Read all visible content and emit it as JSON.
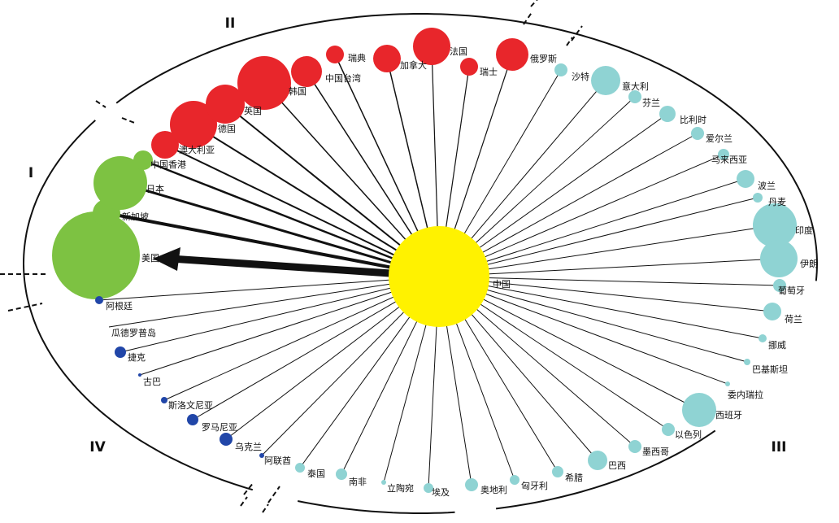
{
  "center": {
    "label": "中国"
  },
  "colors": {
    "center": "#FFF200",
    "I": "#7DC242",
    "II": "#E8262B",
    "III": "#8FD3D3",
    "IV": "#2146A8",
    "line": "#111111"
  },
  "quadrants": [
    {
      "id": "I",
      "label": "I"
    },
    {
      "id": "II",
      "label": "II"
    },
    {
      "id": "III",
      "label": "III"
    },
    {
      "id": "IV",
      "label": "IV"
    }
  ],
  "nodes": [
    {
      "label": "美国",
      "group": "I"
    },
    {
      "label": "新加坡",
      "group": "I"
    },
    {
      "label": "日本",
      "group": "I"
    },
    {
      "label": "中国香港",
      "group": "I"
    },
    {
      "label": "澳大利亚",
      "group": "II"
    },
    {
      "label": "德国",
      "group": "II"
    },
    {
      "label": "英国",
      "group": "II"
    },
    {
      "label": "韩国",
      "group": "II"
    },
    {
      "label": "中国台湾",
      "group": "II"
    },
    {
      "label": "瑞典",
      "group": "II"
    },
    {
      "label": "加拿大",
      "group": "II"
    },
    {
      "label": "法国",
      "group": "II"
    },
    {
      "label": "瑞士",
      "group": "II"
    },
    {
      "label": "俄罗斯",
      "group": "II"
    },
    {
      "label": "沙特",
      "group": "III"
    },
    {
      "label": "意大利",
      "group": "III"
    },
    {
      "label": "芬兰",
      "group": "III"
    },
    {
      "label": "比利时",
      "group": "III"
    },
    {
      "label": "爱尔兰",
      "group": "III"
    },
    {
      "label": "马来西亚",
      "group": "III"
    },
    {
      "label": "波兰",
      "group": "III"
    },
    {
      "label": "丹麦",
      "group": "III"
    },
    {
      "label": "印度",
      "group": "III"
    },
    {
      "label": "伊朗",
      "group": "III"
    },
    {
      "label": "葡萄牙",
      "group": "III"
    },
    {
      "label": "荷兰",
      "group": "III"
    },
    {
      "label": "挪威",
      "group": "III"
    },
    {
      "label": "巴基斯坦",
      "group": "III"
    },
    {
      "label": "委内瑞拉",
      "group": "III"
    },
    {
      "label": "西班牙",
      "group": "III"
    },
    {
      "label": "以色列",
      "group": "III"
    },
    {
      "label": "墨西哥",
      "group": "III"
    },
    {
      "label": "巴西",
      "group": "III"
    },
    {
      "label": "希腊",
      "group": "III"
    },
    {
      "label": "匈牙利",
      "group": "III"
    },
    {
      "label": "奥地利",
      "group": "III"
    },
    {
      "label": "埃及",
      "group": "III"
    },
    {
      "label": "立陶宛",
      "group": "III"
    },
    {
      "label": "南非",
      "group": "III"
    },
    {
      "label": "泰国",
      "group": "III"
    },
    {
      "label": "阿联酋",
      "group": "IV"
    },
    {
      "label": "乌克兰",
      "group": "IV"
    },
    {
      "label": "罗马尼亚",
      "group": "IV"
    },
    {
      "label": "斯洛文尼亚",
      "group": "IV"
    },
    {
      "label": "古巴",
      "group": "IV"
    },
    {
      "label": "捷克",
      "group": "IV"
    },
    {
      "label": "瓜德罗普岛",
      "group": "IV"
    },
    {
      "label": "阿根廷",
      "group": "IV"
    }
  ]
}
